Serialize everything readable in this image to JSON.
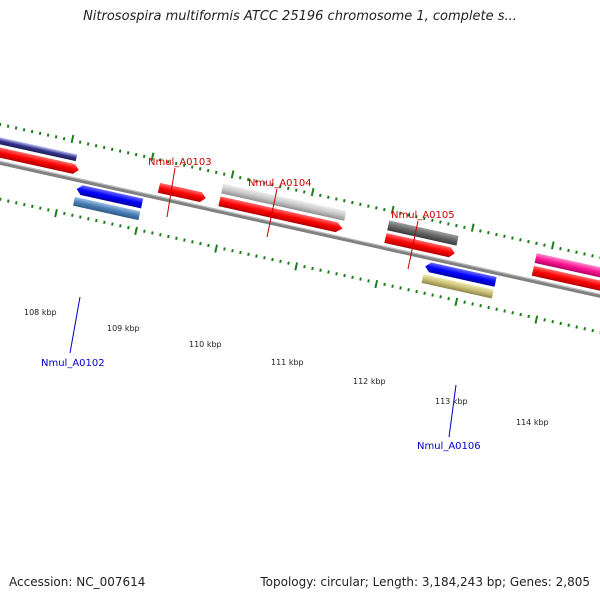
{
  "title": "Nitrosospira multiformis ATCC 25196 chromosome 1, complete s...",
  "footer": {
    "accession": "Accession: NC_007614",
    "summary": "Topology: circular; Length: 3,184,243 bp; Genes: 2,805"
  },
  "colors": {
    "backbone": "#7a7a7a",
    "tick": "#1e7d1e",
    "forward_label": "#cc0000",
    "reverse_label": "#0000cc"
  },
  "scale_labels": [
    "108 kbp",
    "109 kbp",
    "110 kbp",
    "111 kbp",
    "112 kbp",
    "113 kbp",
    "114 kbp"
  ],
  "gene_labels": [
    "Nmul_A0103",
    "Nmul_A0104",
    "Nmul_A0105",
    "Nmul_A0102",
    "Nmul_A0106"
  ]
}
